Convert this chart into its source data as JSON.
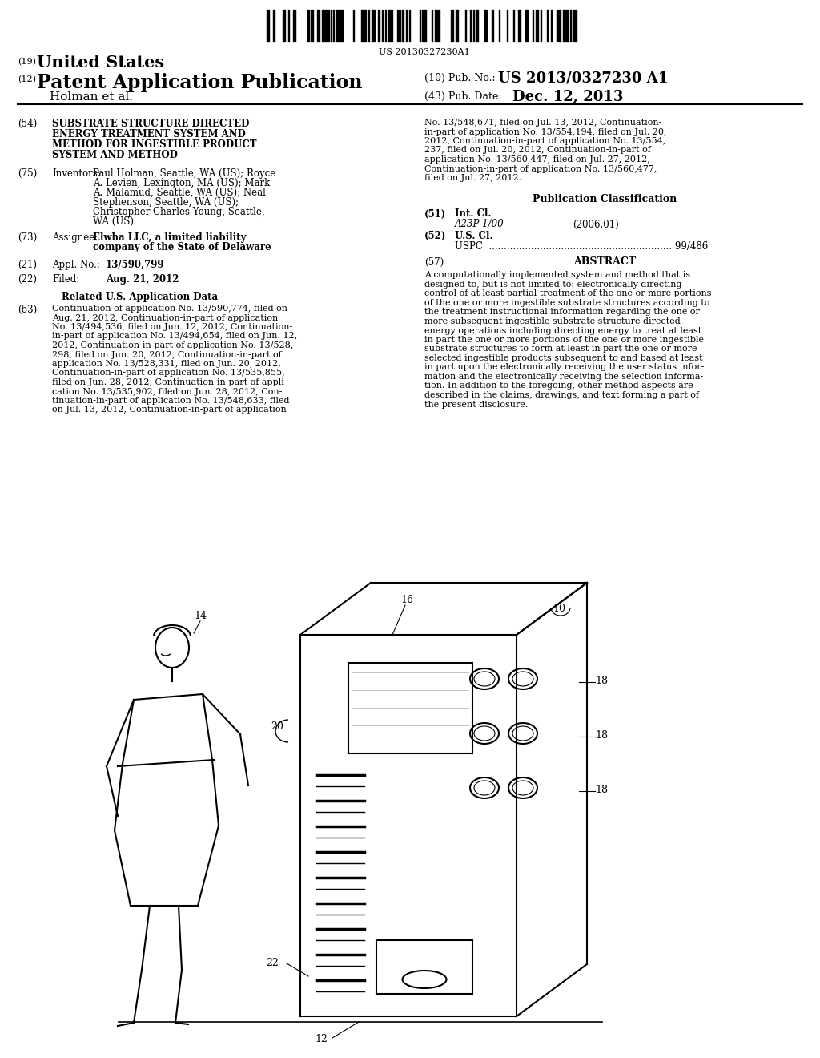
{
  "background_color": "#ffffff",
  "barcode_text": "US 20130327230A1",
  "country_label": "(19)",
  "country_name": "United States",
  "pub_type_label": "(12)",
  "pub_type": "Patent Application Publication",
  "inventors_short": "Holman et al.",
  "pub_no_label": "(10) Pub. No.:",
  "pub_no": "US 2013/0327230 A1",
  "pub_date_label": "(43) Pub. Date:",
  "pub_date": "Dec. 12, 2013",
  "field54_title": "SUBSTRATE STRUCTURE DIRECTED\nENERGY TREATMENT SYSTEM AND\nMETHOD FOR INGESTIBLE PRODUCT\nSYSTEM AND METHOD",
  "field75_content": "Paul Holman, Seattle, WA (US); Royce\nA. Levien, Lexington, MA (US); Mark\nA. Malamud, Seattle, WA (US); Neal\nStephenson, Seattle, WA (US);\nChristopher Charles Young, Seattle,\nWA (US)",
  "field73_content": "Elwha LLC, a limited liability\ncompany of the State of Delaware",
  "related_title": "Related U.S. Application Data",
  "field63_content": "Continuation of application No. 13/590,774, filed on\nAug. 21, 2012, Continuation-in-part of application\nNo. 13/494,536, filed on Jun. 12, 2012, Continuation-\nin-part of application No. 13/494,654, filed on Jun. 12,\n2012, Continuation-in-part of application No. 13/528,\n298, filed on Jun. 20, 2012, Continuation-in-part of\napplication No. 13/528,331, filed on Jun. 20, 2012,\nContinuation-in-part of application No. 13/535,855,\nfiled on Jun. 28, 2012, Continuation-in-part of appli-\ncation No. 13/535,902, filed on Jun. 28, 2012, Con-\ntinuation-in-part of application No. 13/548,633, filed\non Jul. 13, 2012, Continuation-in-part of application",
  "right_col_top": "No. 13/548,671, filed on Jul. 13, 2012, Continuation-\nin-part of application No. 13/554,194, filed on Jul. 20,\n2012, Continuation-in-part of application No. 13/554,\n237, filed on Jul. 20, 2012, Continuation-in-part of\napplication No. 13/560,447, filed on Jul. 27, 2012,\nContinuation-in-part of application No. 13/560,477,\nfiled on Jul. 27, 2012.",
  "pub_class_title": "Publication Classification",
  "field57_abstract_title": "ABSTRACT",
  "abstract_text": "A computationally implemented system and method that is\ndesigned to, but is not limited to: electronically directing\ncontrol of at least partial treatment of the one or more portions\nof the one or more ingestible substrate structures according to\nthe treatment instructional information regarding the one or\nmore subsequent ingestible substrate structure directed\nenergy operations including directing energy to treat at least\nin part the one or more portions of the one or more ingestible\nsubstrate structures to form at least in part the one or more\nselected ingestible products subsequent to and based at least\nin part upon the electronically receiving the user status infor-\nmation and the electronically receiving the selection informa-\ntion. In addition to the foregoing, other method aspects are\ndescribed in the claims, drawings, and text forming a part of\nthe present disclosure."
}
